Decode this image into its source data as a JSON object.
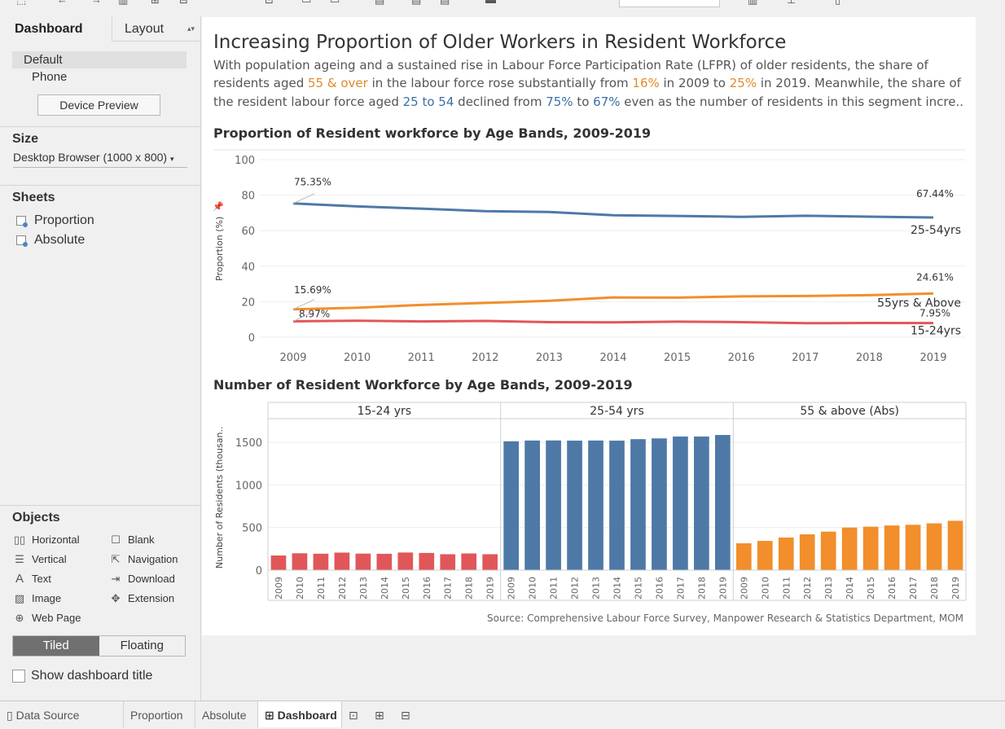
{
  "sidebar": {
    "tabs": {
      "dashboard": "Dashboard",
      "layout": "Layout"
    },
    "devices": [
      "Default",
      "Phone"
    ],
    "device_preview": "Device Preview",
    "size": {
      "title": "Size",
      "value": "Desktop Browser (1000 x 800)"
    },
    "sheets": {
      "title": "Sheets",
      "items": [
        "Proportion",
        "Absolute"
      ]
    },
    "objects": {
      "title": "Objects",
      "items": [
        "Horizontal",
        "Blank",
        "Vertical",
        "Navigation",
        "Text",
        "Download",
        "Image",
        "Extension",
        "Web Page"
      ]
    },
    "tiled": "Tiled",
    "floating": "Floating",
    "show_title": "Show dashboard title"
  },
  "dashboard": {
    "title": "Increasing Proportion of Older Workers in Resident Workforce",
    "description": {
      "line1": "With population ageing and a sustained rise in Labour Force Participation Rate (LFPR) of older residents, the share of",
      "line2": [
        {
          "t": "residents aged ",
          "c": "n"
        },
        {
          "t": "55 & over",
          "c": "o"
        },
        {
          "t": " in the labour force rose substantially from ",
          "c": "n"
        },
        {
          "t": "16%",
          "c": "o"
        },
        {
          "t": " in 2009 to ",
          "c": "n"
        },
        {
          "t": "25%",
          "c": "o"
        },
        {
          "t": " in 2019. Meanwhile, the share of",
          "c": "n"
        }
      ],
      "line3": [
        {
          "t": "the resident labour force aged ",
          "c": "n"
        },
        {
          "t": "25 to 54",
          "c": "b"
        },
        {
          "t": " declined from ",
          "c": "n"
        },
        {
          "t": "75%",
          "c": "b"
        },
        {
          "t": " to ",
          "c": "n"
        },
        {
          "t": "67%",
          "c": "b"
        },
        {
          "t": " even as the number of residents in this segment incre..",
          "c": "n"
        }
      ]
    },
    "source": "Source: Comprehensive Labour Force Survey, Manpower Research & Statistics Department, MOM"
  },
  "colors": {
    "blue": "#4e79a7",
    "orange": "#f28e2b",
    "red": "#e15759",
    "accent_blue": "#3d6fa5",
    "accent_orange": "#e08a2a"
  },
  "chart_data": [
    {
      "type": "line",
      "title": "Proportion of Resident workforce by Age Bands, 2009-2019",
      "ylabel": "Proportion (%)",
      "xlabel": "",
      "ylim": [
        0,
        100
      ],
      "yticks": [
        0,
        20,
        40,
        60,
        80,
        100
      ],
      "x": [
        2009,
        2010,
        2011,
        2012,
        2013,
        2014,
        2015,
        2016,
        2017,
        2018,
        2019
      ],
      "series": [
        {
          "name": "25-54yrs",
          "color": "#4e79a7",
          "values": [
            75.35,
            73.7,
            72.4,
            71.0,
            70.5,
            68.7,
            68.3,
            67.8,
            68.4,
            67.9,
            67.44
          ],
          "start_label": "75.35%",
          "end_label": "67.44%"
        },
        {
          "name": "55yrs & Above",
          "color": "#f28e2b",
          "values": [
            15.69,
            16.6,
            18.2,
            19.3,
            20.5,
            22.4,
            22.3,
            23.0,
            23.2,
            23.7,
            24.61
          ],
          "start_label": "15.69%",
          "end_label": "24.61%"
        },
        {
          "name": "15-24yrs",
          "color": "#e15759",
          "values": [
            8.97,
            9.3,
            8.9,
            9.2,
            8.5,
            8.4,
            8.8,
            8.5,
            7.9,
            8.0,
            7.95
          ],
          "start_label": "8.97%",
          "end_label": "7.95%"
        }
      ],
      "grid": true
    },
    {
      "type": "bar",
      "title": "Number of Resident Workforce by Age Bands, 2009-2019",
      "ylabel": "Number of Residents (thousan..",
      "ylim": [
        0,
        1700
      ],
      "yticks": [
        0,
        500,
        1000,
        1500
      ],
      "categories": [
        "2009",
        "2010",
        "2011",
        "2012",
        "2013",
        "2014",
        "2015",
        "2016",
        "2017",
        "2018",
        "2019"
      ],
      "series": [
        {
          "name": "15-24 yrs",
          "color": "#e15759",
          "values": [
            172,
            198,
            193,
            206,
            194,
            192,
            207,
            202,
            187,
            196,
            187
          ]
        },
        {
          "name": "25-54 yrs",
          "color": "#4e79a7",
          "values": [
            1511,
            1520,
            1521,
            1519,
            1520,
            1519,
            1536,
            1545,
            1567,
            1567,
            1585
          ]
        },
        {
          "name": "55 & above (Abs)",
          "color": "#f28e2b",
          "values": [
            315,
            343,
            383,
            420,
            452,
            500,
            510,
            524,
            532,
            549,
            579
          ]
        }
      ],
      "grid": true
    }
  ],
  "bottom_tabs": {
    "data_source": "Data Source",
    "proportion": "Proportion",
    "absolute": "Absolute",
    "dashboard": "Dashboard"
  }
}
